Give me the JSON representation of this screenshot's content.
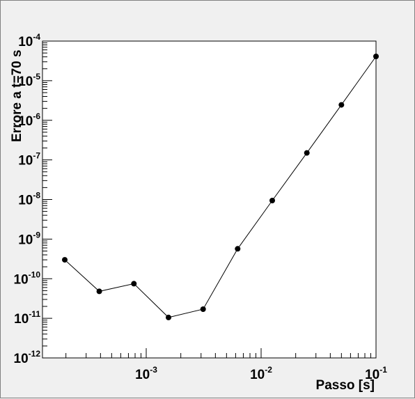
{
  "chart_data": {
    "type": "scatter",
    "xlabel": "Passo [s]",
    "ylabel": "Errore a t=70 s",
    "x_scale": "log",
    "y_scale": "log",
    "xlim": [
      0.000125,
      0.1
    ],
    "ylim": [
      1e-12,
      0.0001
    ],
    "grid": false,
    "colors": {
      "line": "#000000",
      "marker": "#000000",
      "frame": "#000000",
      "background": "#f0f0f0"
    },
    "x_ticks": [
      {
        "value": 0.001,
        "base": "10",
        "exp": "-3"
      },
      {
        "value": 0.01,
        "base": "10",
        "exp": "-2"
      },
      {
        "value": 0.1,
        "base": "10",
        "exp": "-1"
      }
    ],
    "y_ticks": [
      {
        "value": 1e-12,
        "base": "10",
        "exp": "-12"
      },
      {
        "value": 1e-11,
        "base": "10",
        "exp": "-11"
      },
      {
        "value": 1e-10,
        "base": "10",
        "exp": "-10"
      },
      {
        "value": 1e-09,
        "base": "10",
        "exp": "-9"
      },
      {
        "value": 1e-08,
        "base": "10",
        "exp": "-8"
      },
      {
        "value": 1e-07,
        "base": "10",
        "exp": "-7"
      },
      {
        "value": 1e-06,
        "base": "10",
        "exp": "-6"
      },
      {
        "value": 1e-05,
        "base": "10",
        "exp": "-5"
      },
      {
        "value": 0.0001,
        "base": "10",
        "exp": "-4"
      }
    ],
    "series": [
      {
        "x": [
          0.0001953,
          0.0003906,
          0.0007813,
          0.0015625,
          0.003125,
          0.00625,
          0.0125,
          0.025,
          0.05,
          0.1
        ],
        "y": [
          3e-10,
          4.8e-11,
          7.5e-11,
          1.05e-11,
          1.7e-11,
          5.7e-10,
          9.4e-09,
          1.5e-07,
          2.45e-06,
          4.1e-05
        ]
      }
    ]
  }
}
